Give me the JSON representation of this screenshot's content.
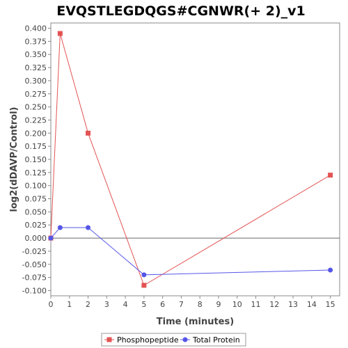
{
  "chart_data": {
    "type": "line",
    "title": "EVQSTLEGDQGS#CGNWR(+ 2)_v1",
    "xlabel": "Time (minutes)",
    "ylabel": "log2(dDAVP/Control)",
    "xlim": [
      0,
      15.5
    ],
    "ylim": [
      -0.11,
      0.41
    ],
    "x_ticks": [
      0,
      1,
      2,
      3,
      4,
      5,
      6,
      7,
      8,
      9,
      10,
      11,
      12,
      13,
      14,
      15
    ],
    "y_ticks": [
      -0.1,
      -0.075,
      -0.05,
      -0.025,
      0.0,
      0.025,
      0.05,
      0.075,
      0.1,
      0.125,
      0.15,
      0.175,
      0.2,
      0.225,
      0.25,
      0.275,
      0.3,
      0.325,
      0.35,
      0.375,
      0.4
    ],
    "y_tick_labels": [
      "-0.100",
      "-0.075",
      "-0.050",
      "-0.025",
      "0.000",
      "0.025",
      "0.050",
      "0.075",
      "0.100",
      "0.125",
      "0.150",
      "0.175",
      "0.200",
      "0.225",
      "0.250",
      "0.275",
      "0.300",
      "0.325",
      "0.350",
      "0.375",
      "0.400"
    ],
    "grid": false,
    "zero_line": true,
    "legend_position": "bottom",
    "series": [
      {
        "name": "Phosphopeptide",
        "color": "#e35353",
        "marker": "square",
        "x": [
          0,
          0.5,
          2,
          5,
          15
        ],
        "y": [
          0.0,
          0.39,
          0.2,
          -0.09,
          0.12
        ]
      },
      {
        "name": "Total Protein",
        "color": "#5555e8",
        "marker": "circle",
        "x": [
          0,
          0.5,
          2,
          5,
          15
        ],
        "y": [
          0.0,
          0.02,
          0.02,
          -0.07,
          -0.061
        ]
      }
    ]
  }
}
